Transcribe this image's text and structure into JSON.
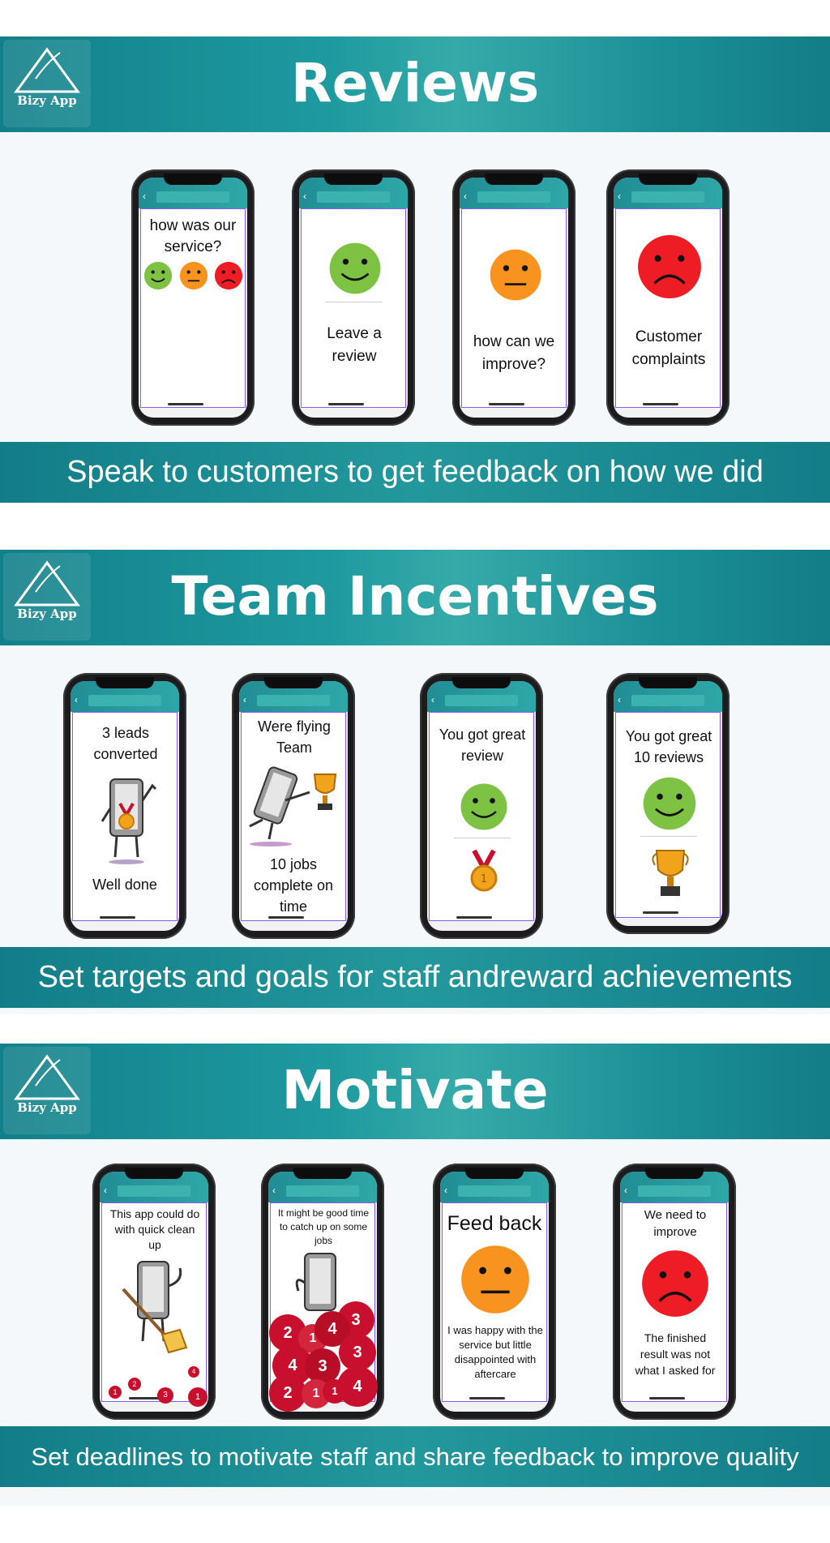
{
  "logo": {
    "text": "Bizy App"
  },
  "sections": [
    {
      "title": "Reviews",
      "footer": "Speak to customers to get feedback on how we did",
      "phones": [
        {
          "text": "how was our service?"
        },
        {
          "text": "Leave a review"
        },
        {
          "text": "how can we improve?"
        },
        {
          "text": "Customer complaints"
        }
      ]
    },
    {
      "title": "Team Incentives",
      "footer": "Set targets and goals for staff andreward achievements",
      "phones": [
        {
          "top_text": "3 leads converted",
          "bottom_text": "Well done"
        },
        {
          "top_text": "Were flying Team",
          "bottom_text": "10 jobs complete on time"
        },
        {
          "top_text": "You got great review"
        },
        {
          "top_text": "You got great 10 reviews"
        }
      ]
    },
    {
      "title": "Motivate",
      "footer": "Set deadlines to motivate staff and share feedback to  improve quality",
      "phones": [
        {
          "top_text": "This app could do with quick clean up",
          "ball_numbers": [
            "1",
            "2",
            "3",
            "4",
            "1"
          ]
        },
        {
          "top_text": "It might be good time to catch up on some jobs",
          "ball_numbers": [
            "3",
            "2",
            "1",
            "4",
            "3",
            "4",
            "3",
            "2",
            "1",
            "1",
            "4"
          ]
        },
        {
          "top_text": "Feed back",
          "bottom_text": "I was happy with the service but little disappointed with aftercare"
        },
        {
          "top_text": "We need to improve",
          "bottom_text": "The finished result was not what I asked for"
        }
      ]
    }
  ],
  "colors": {
    "teal": "#1e9a9f",
    "happy": "#7dc242",
    "neutral": "#f7931e",
    "sad": "#ee1c24",
    "ball": "#c8102e"
  }
}
